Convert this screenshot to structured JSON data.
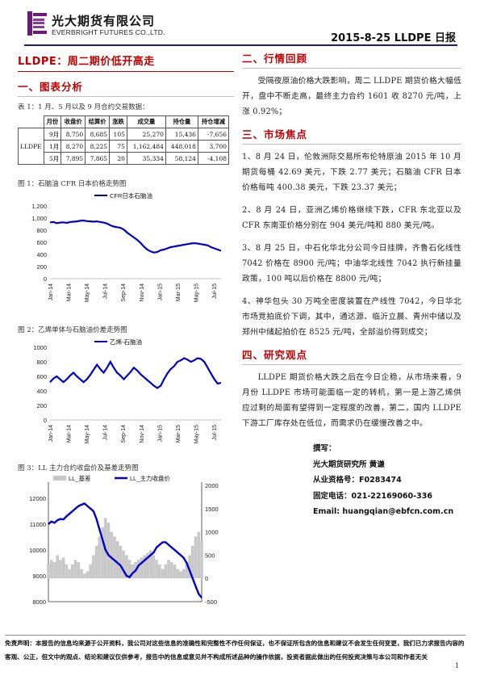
{
  "header": {
    "company_cn": "光大期货有限公司",
    "company_en": "EVERBRIGHT FUTURES CO.,LTD.",
    "report_id": "2015-8-25   LLDPE 日报"
  },
  "left": {
    "main_title": "LLDPE：周二期价低开高走",
    "section1": "一、图表分析",
    "table_caption": "表 1：1 月、5 月以及 9 月合约交易数据：",
    "table": {
      "headers": [
        "月份",
        "收盘价",
        "结算价",
        "涨跌",
        "成交量",
        "持仓量",
        "持仓增减"
      ],
      "product": "LLDPE",
      "rows": [
        [
          "9月",
          "8,750",
          "8,685",
          "105",
          "25,270",
          "15,436",
          "-7,656"
        ],
        [
          "1月",
          "8,270",
          "8,225",
          "75",
          "1,162,484",
          "448,018",
          "3,700"
        ],
        [
          "5月",
          "7,895",
          "7,865",
          "20",
          "35,334",
          "58,124",
          "-4,108"
        ]
      ]
    },
    "fig1_caption": "图 1：石脑油 CFR 日本价格走势图",
    "fig2_caption": "图 2：乙烯单体与石脑油价差走势图",
    "fig3_caption": "图 3：LL 主力合约收盘价及基差走势图"
  },
  "right": {
    "section2": "二、行情回顾",
    "review": "受隔夜原油价格大跌影响，周二 LLDPE 期货价格大幅低开，盘中不断走高，最终主力合约 1601 收 8270 元/吨，上涨 0.92%；",
    "section3": "三、市场焦点",
    "focus": [
      "1、8 月 24 日，伦敦洲际交易所布伦特原油 2015 年 10 月期货每桶 42.69 美元，下跌 2.77 美元；石脑油 CFR 日本价格每吨 400.38 美元，下跌 23.37 美元；",
      "2、8 月 24 日，亚洲乙烯价格继续下跌，CFR 东北亚以及 CFR 东南亚价格分别在 904 美元/吨和 880 美元/吨。",
      "3、8 月 25 日，中石化华北分公司今日挂牌，齐鲁石化线性 7042 价格在 8900 元/吨；中油华北线性 7042 执行新挂量政策，100 吨以后价格在 8800 元/吨；",
      "4、神华包头 30 万吨全密度装置在产线性 7042，今日华北市场竞拍底价下调，其中，通达源、临沂立晨、青州中储以及郑州中储起拍价在 8525 元/吨，全部溢价得到成交；"
    ],
    "section4": "四、研究观点",
    "view": "LLDPE 期货价格大跌之后在今日企稳，从市场来看，9 月份 LLDPE 市场可能面临一定的转机，第一是上游乙烯供应过剩的局面有望得到一定程度的改善，第二，国内 LLDPE 下游工厂库存处在低位，而需求仍在缓慢改善之中。",
    "author": {
      "l1": "撰写：",
      "l2": "光大期货研究所     黄谦",
      "l3": "从业资格号：F0283474",
      "l4": "固定电话：021-22169060-336",
      "l5": "Email:  huangqian@ebfcn.com.cn"
    }
  },
  "disclaimer": "免责声明：本报告的信息均来源于公开资料，我公司对这些信息的准确性和完整性不作任何保证，也不保证所包含的信息和建议不会发生任何变更，我们已力求报告内容的客观、公正，但文中的观点、结论和建议仅供参考，报告中的信息或意见并不构成所述品种的操作依据，投资者据此做出的任何投资决策与本公司和作者无关",
  "page_number": "1",
  "chart_data": [
    {
      "type": "line",
      "legend": "CFR日本石脑油",
      "x_ticks": [
        "Jan-14",
        "Mar-14",
        "May-14",
        "Jul-14",
        "Sep-14",
        "Nov-14",
        "Jan-15",
        "Mar-15",
        "May-15",
        "Jul-15"
      ],
      "y_ticks": [
        "0",
        "200",
        "400",
        "600",
        "800",
        "1,000",
        "1,200"
      ],
      "ylim": [
        0,
        1200
      ],
      "series": [
        {
          "name": "CFR日本石脑油",
          "values": [
            930,
            935,
            915,
            925,
            930,
            920,
            935,
            940,
            945,
            955,
            960,
            950,
            945,
            940,
            945,
            935,
            925,
            910,
            880,
            860,
            850,
            840,
            810,
            760,
            720,
            680,
            640,
            590,
            530,
            480,
            450,
            430,
            440,
            470,
            480,
            500,
            520,
            530,
            540,
            550,
            560,
            570,
            580,
            585,
            580,
            570,
            560,
            550,
            520,
            500,
            480,
            460
          ]
        }
      ],
      "color": "#0000cc"
    },
    {
      "type": "line",
      "legend": "乙烯-石脑油",
      "x_ticks": [
        "Jan-14",
        "Mar-14",
        "May-14",
        "Jul-14",
        "Sep-14",
        "Nov-14",
        "Jan-15",
        "Mar-15",
        "May-15",
        "Jul-15"
      ],
      "y_ticks": [
        "0",
        "200",
        "400",
        "600",
        "800",
        "1000"
      ],
      "ylim": [
        0,
        1000
      ],
      "series": [
        {
          "name": "乙烯-石脑油",
          "values": [
            520,
            570,
            600,
            560,
            520,
            560,
            610,
            650,
            600,
            560,
            520,
            560,
            620,
            690,
            760,
            700,
            650,
            720,
            800,
            720,
            650,
            610,
            560,
            610,
            660,
            720,
            680,
            630,
            590,
            550,
            510,
            470,
            440,
            470,
            560,
            640,
            700,
            740,
            800,
            820,
            850,
            830,
            800,
            820,
            850,
            840,
            800,
            720,
            640,
            560,
            500,
            510
          ]
        }
      ],
      "color": "#0000cc"
    },
    {
      "type": "area",
      "legends": [
        "LL_基差",
        "LL_主力收盘价"
      ],
      "y_ticks_left": [
        "8000",
        "9000",
        "10000",
        "11000",
        "12000"
      ],
      "y_ticks_right": [
        "-500",
        "0",
        "500",
        "1000",
        "1500",
        "2000"
      ],
      "ylim_left": [
        8000,
        12500
      ],
      "ylim_right": [
        -500,
        2000
      ],
      "series": [
        {
          "name": "LL_主力收盘价",
          "values": [
            11000,
            11100,
            11050,
            11150,
            11200,
            11180,
            11300,
            11400,
            11500,
            11600,
            11700,
            11750,
            11800,
            11700,
            11600,
            11500,
            11200,
            10800,
            10400,
            10000,
            9800,
            9700,
            9600,
            9500,
            9400,
            9200,
            9000,
            8950,
            9100,
            9200,
            9400,
            9500,
            9600,
            9700,
            9800,
            9900,
            10100,
            10200,
            10300,
            10300,
            10200,
            10100,
            10000,
            9900,
            9800,
            9700,
            9500,
            9200,
            8900,
            8600,
            8300,
            8150
          ]
        },
        {
          "name": "LL_基差",
          "values": [
            300,
            400,
            350,
            500,
            400,
            450,
            300,
            200,
            300,
            400,
            350,
            200,
            100,
            150,
            300,
            500,
            700,
            900,
            1100,
            1300,
            1200,
            1000,
            900,
            800,
            700,
            600,
            500,
            400,
            300,
            350,
            400,
            450,
            500,
            550,
            600,
            500,
            400,
            300,
            200,
            300,
            400,
            350,
            300,
            200,
            150,
            200,
            350,
            500,
            700,
            900,
            1000,
            800
          ]
        }
      ]
    }
  ]
}
